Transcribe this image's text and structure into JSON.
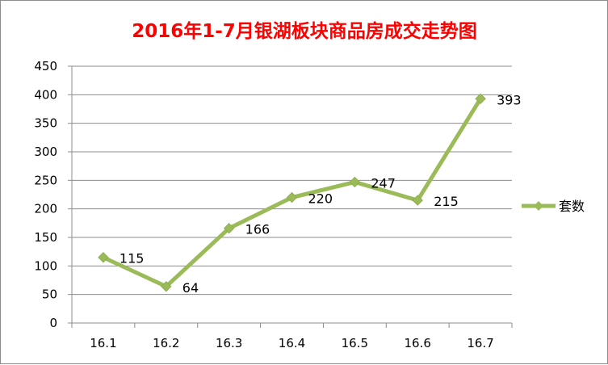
{
  "chart_data": {
    "type": "line",
    "title": "2016年1-7月银湖板块商品房成交走势图",
    "categories": [
      "16.1",
      "16.2",
      "16.3",
      "16.4",
      "16.5",
      "16.6",
      "16.7"
    ],
    "series": [
      {
        "name": "套数",
        "values": [
          115,
          64,
          166,
          220,
          247,
          215,
          393
        ],
        "color": "#9bbb59",
        "marker": "diamond"
      }
    ],
    "ylim": [
      0,
      450
    ],
    "yticks": [
      0,
      50,
      100,
      150,
      200,
      250,
      300,
      350,
      400,
      450
    ],
    "xlabel": "",
    "ylabel": "",
    "grid": true,
    "legend": "right",
    "data_labels": true
  }
}
